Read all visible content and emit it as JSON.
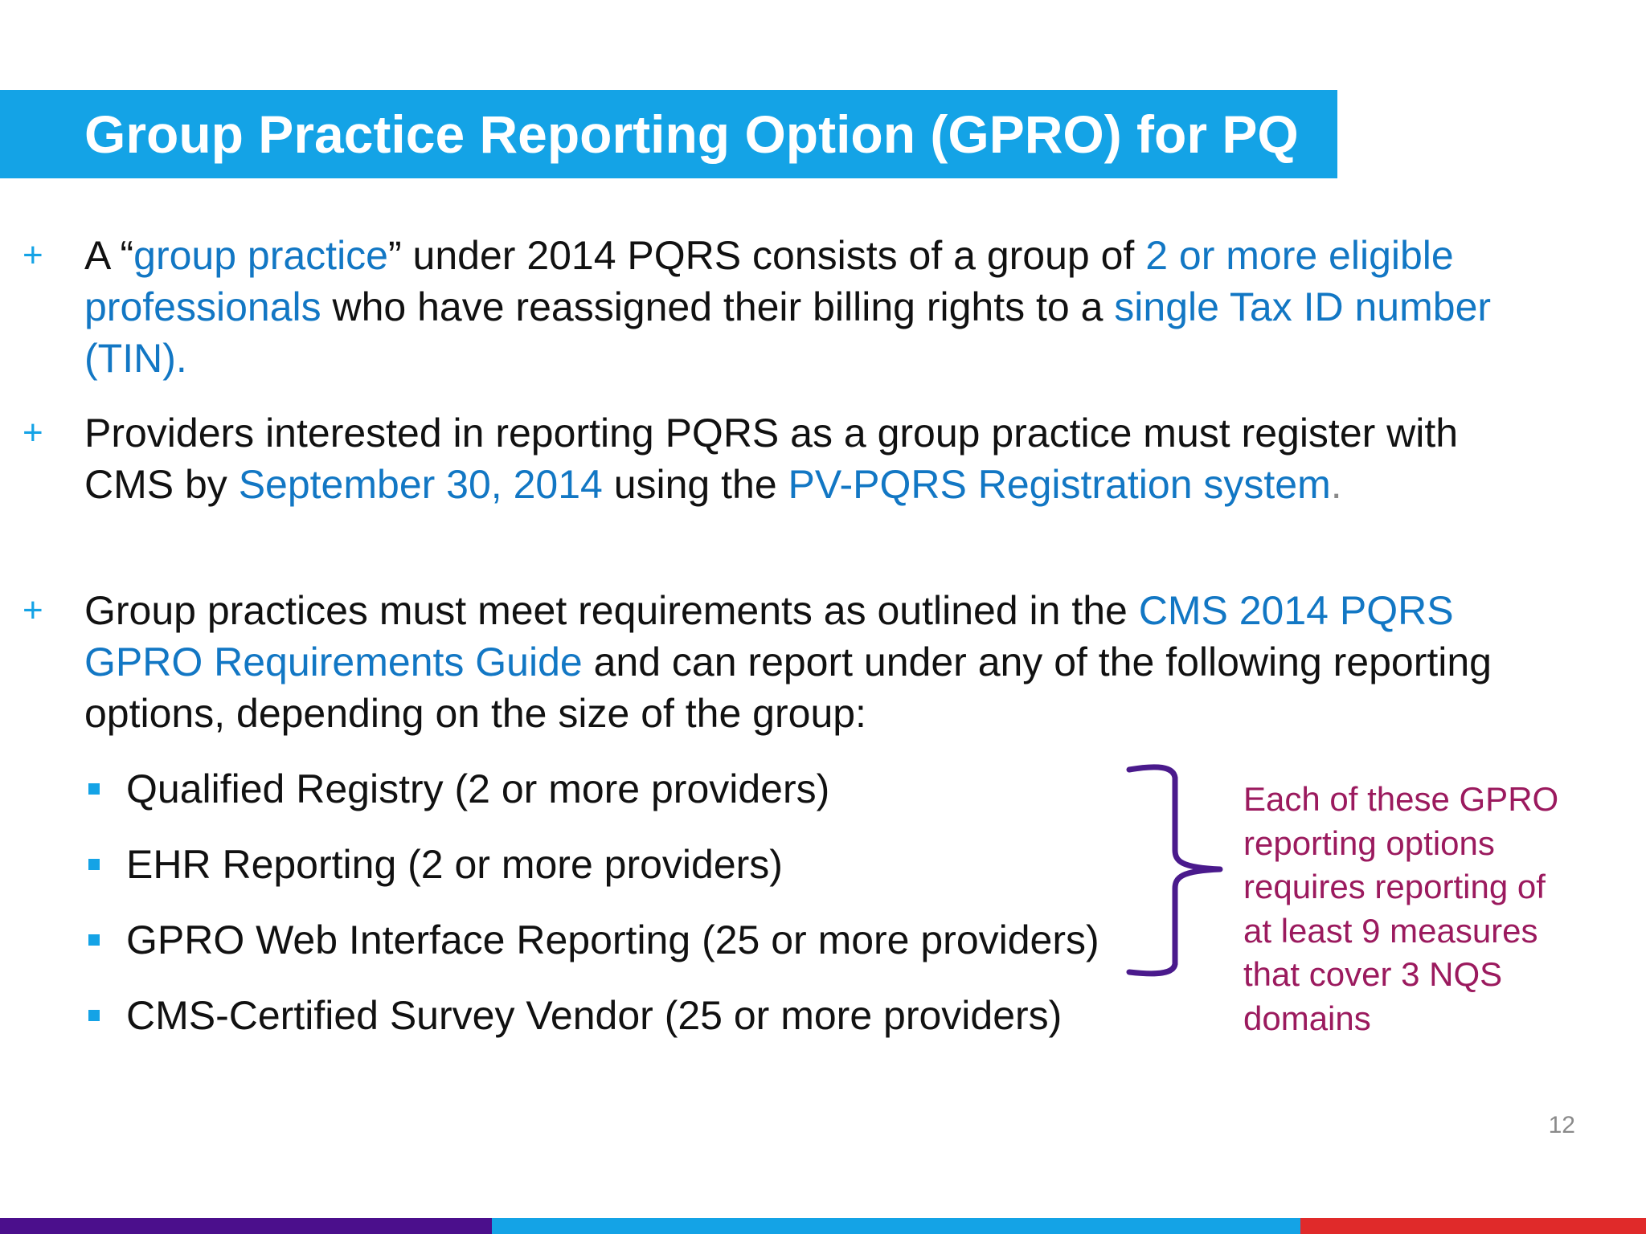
{
  "title": "Group Practice Reporting Option (GPRO) for PQ",
  "bullets": [
    {
      "marker": "+",
      "segments": [
        {
          "text": "A “",
          "hl": false
        },
        {
          "text": "group practice",
          "hl": true
        },
        {
          "text": "” under 2014 PQRS consists of a group of ",
          "hl": false
        },
        {
          "text": "2 or more eligible professionals",
          "hl": true
        },
        {
          "text": " who have reassigned their billing rights to a ",
          "hl": false
        },
        {
          "text": "single Tax ID number (TIN).",
          "hl": true
        }
      ]
    },
    {
      "marker": "+",
      "segments": [
        {
          "text": "Providers interested in reporting PQRS as a group practice must register with CMS by ",
          "hl": false
        },
        {
          "text": "September 30, 2014",
          "hl": true
        },
        {
          "text": " using the ",
          "hl": false
        },
        {
          "text": "PV-PQRS Registration system",
          "hl": true
        },
        {
          "text": ".",
          "hl": false,
          "grey": true
        }
      ]
    },
    {
      "marker": "+",
      "segments": [
        {
          "text": "Group practices must meet requirements as outlined in the ",
          "hl": false
        },
        {
          "text": "CMS 2014 PQRS GPRO Requirements Guide",
          "hl": true
        },
        {
          "text": " and can report under any of the following reporting options, depending on the size of the group:",
          "hl": false
        }
      ]
    }
  ],
  "sub_bullets": [
    "Qualified Registry (2 or more providers)",
    "EHR Reporting (2 or more providers)",
    "GPRO Web Interface Reporting (25 or more providers)",
    "CMS-Certified Survey Vendor (25 or more providers)"
  ],
  "note": "Each of these GPRO reporting options requires reporting of at least 9 measures that cover 3 NQS domains",
  "page_number": "12",
  "colors": {
    "accent": "#14a3e6",
    "highlight_text": "#1277c4",
    "note_text": "#9b1a5e",
    "brace": "#4a1a8c",
    "footer": [
      "#4b0f8c",
      "#14a3e6",
      "#e02a2a"
    ]
  }
}
